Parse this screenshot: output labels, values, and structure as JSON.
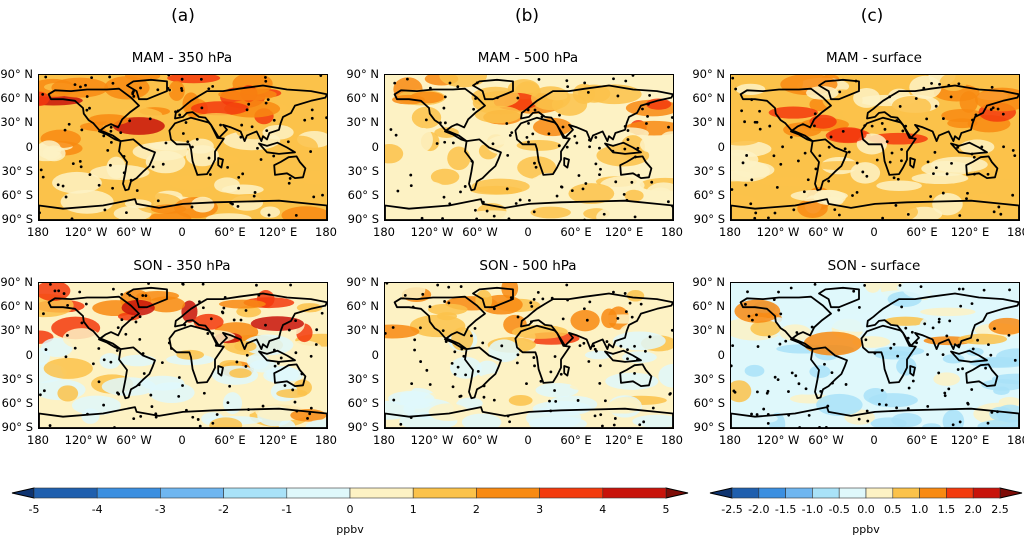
{
  "figure": {
    "column_labels": [
      "(a)",
      "(b)",
      "(c)"
    ]
  },
  "chart_data": {
    "type": "heatmap",
    "description": "Six global lat-lon maps of ozone difference (ppbv) with stippling for significance",
    "panels": [
      {
        "id": "a-top",
        "title": "MAM - 350 hPa",
        "column": "(a)",
        "season": "MAM",
        "level": "350 hPa",
        "colorbar": "main",
        "dominant_range": [
          0,
          4
        ],
        "stippled": true
      },
      {
        "id": "b-top",
        "title": "MAM - 500 hPa",
        "column": "(b)",
        "season": "MAM",
        "level": "500 hPa",
        "colorbar": "main",
        "dominant_range": [
          0,
          3
        ],
        "stippled": true
      },
      {
        "id": "c-top",
        "title": "MAM - surface",
        "column": "(c)",
        "season": "MAM",
        "level": "surface",
        "colorbar": "surface",
        "dominant_range": [
          0,
          2.0
        ],
        "stippled": true
      },
      {
        "id": "a-bot",
        "title": "SON - 350 hPa",
        "column": "(a)",
        "season": "SON",
        "level": "350 hPa",
        "colorbar": "main",
        "dominant_range": [
          -1,
          4
        ],
        "stippled": true
      },
      {
        "id": "b-bot",
        "title": "SON - 500 hPa",
        "column": "(b)",
        "season": "SON",
        "level": "500 hPa",
        "colorbar": "main",
        "dominant_range": [
          -1,
          3
        ],
        "stippled": true
      },
      {
        "id": "c-bot",
        "title": "SON - surface",
        "column": "(c)",
        "season": "SON",
        "level": "surface",
        "colorbar": "surface",
        "dominant_range": [
          -1.0,
          1.5
        ],
        "stippled": true
      }
    ],
    "y_ticks": [
      "90° N",
      "60° N",
      "30° N",
      "0",
      "30° S",
      "60° S",
      "90° S"
    ],
    "x_ticks": [
      "180",
      "120° W",
      "60° W",
      "0",
      "60° E",
      "120° E",
      "180"
    ],
    "ylim": [
      -90,
      90
    ],
    "xlim": [
      -180,
      180
    ],
    "colorbars": {
      "main": {
        "label": "ppbv",
        "ticks": [
          "-5",
          "-4",
          "-3",
          "-2",
          "-1",
          "0",
          "1",
          "2",
          "3",
          "4",
          "5"
        ],
        "levels": [
          -5,
          -4,
          -3,
          -2,
          -1,
          0,
          1,
          2,
          3,
          4,
          5
        ],
        "colors": [
          "#1f5fae",
          "#3b8fe0",
          "#6fb6f0",
          "#a9e2f8",
          "#dff8fb",
          "#fdf2c4",
          "#fbc24a",
          "#f88a12",
          "#f33a0d",
          "#c8130a"
        ],
        "extend_low_color": "#0e3470",
        "extend_high_color": "#7e0c07"
      },
      "surface": {
        "label": "ppbv",
        "ticks": [
          "-2.5",
          "-2.0",
          "-1.5",
          "-1.0",
          "-0.5",
          "0.0",
          "0.5",
          "1.0",
          "1.5",
          "2.0",
          "2.5"
        ],
        "levels": [
          -2.5,
          -2.0,
          -1.5,
          -1.0,
          -0.5,
          0.0,
          0.5,
          1.0,
          1.5,
          2.0,
          2.5
        ],
        "colors": [
          "#1f5fae",
          "#3b8fe0",
          "#6fb6f0",
          "#a9e2f8",
          "#dff8fb",
          "#fdf2c4",
          "#fbc24a",
          "#f88a12",
          "#f33a0d",
          "#c8130a"
        ],
        "extend_low_color": "#0e3470",
        "extend_high_color": "#7e0c07"
      }
    }
  }
}
